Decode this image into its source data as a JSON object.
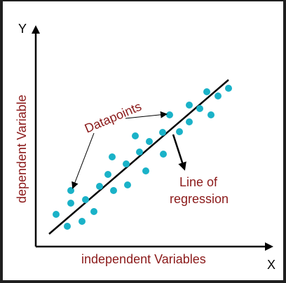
{
  "labels": {
    "y_axis_letter": "Y",
    "x_axis_letter": "X",
    "y_axis_title": "dependent Variable",
    "x_axis_title": "independent Variables",
    "datapoints": "Datapoints",
    "regression_line_1": "Line of",
    "regression_line_2": "regression"
  },
  "colors": {
    "axis": "#000000",
    "regression_line": "#000000",
    "datapoint": "#1ab2c8",
    "label_text": "#8b1a1a",
    "axis_letter": "#000000",
    "background": "#ffffff"
  },
  "datapoint_count": 25
}
